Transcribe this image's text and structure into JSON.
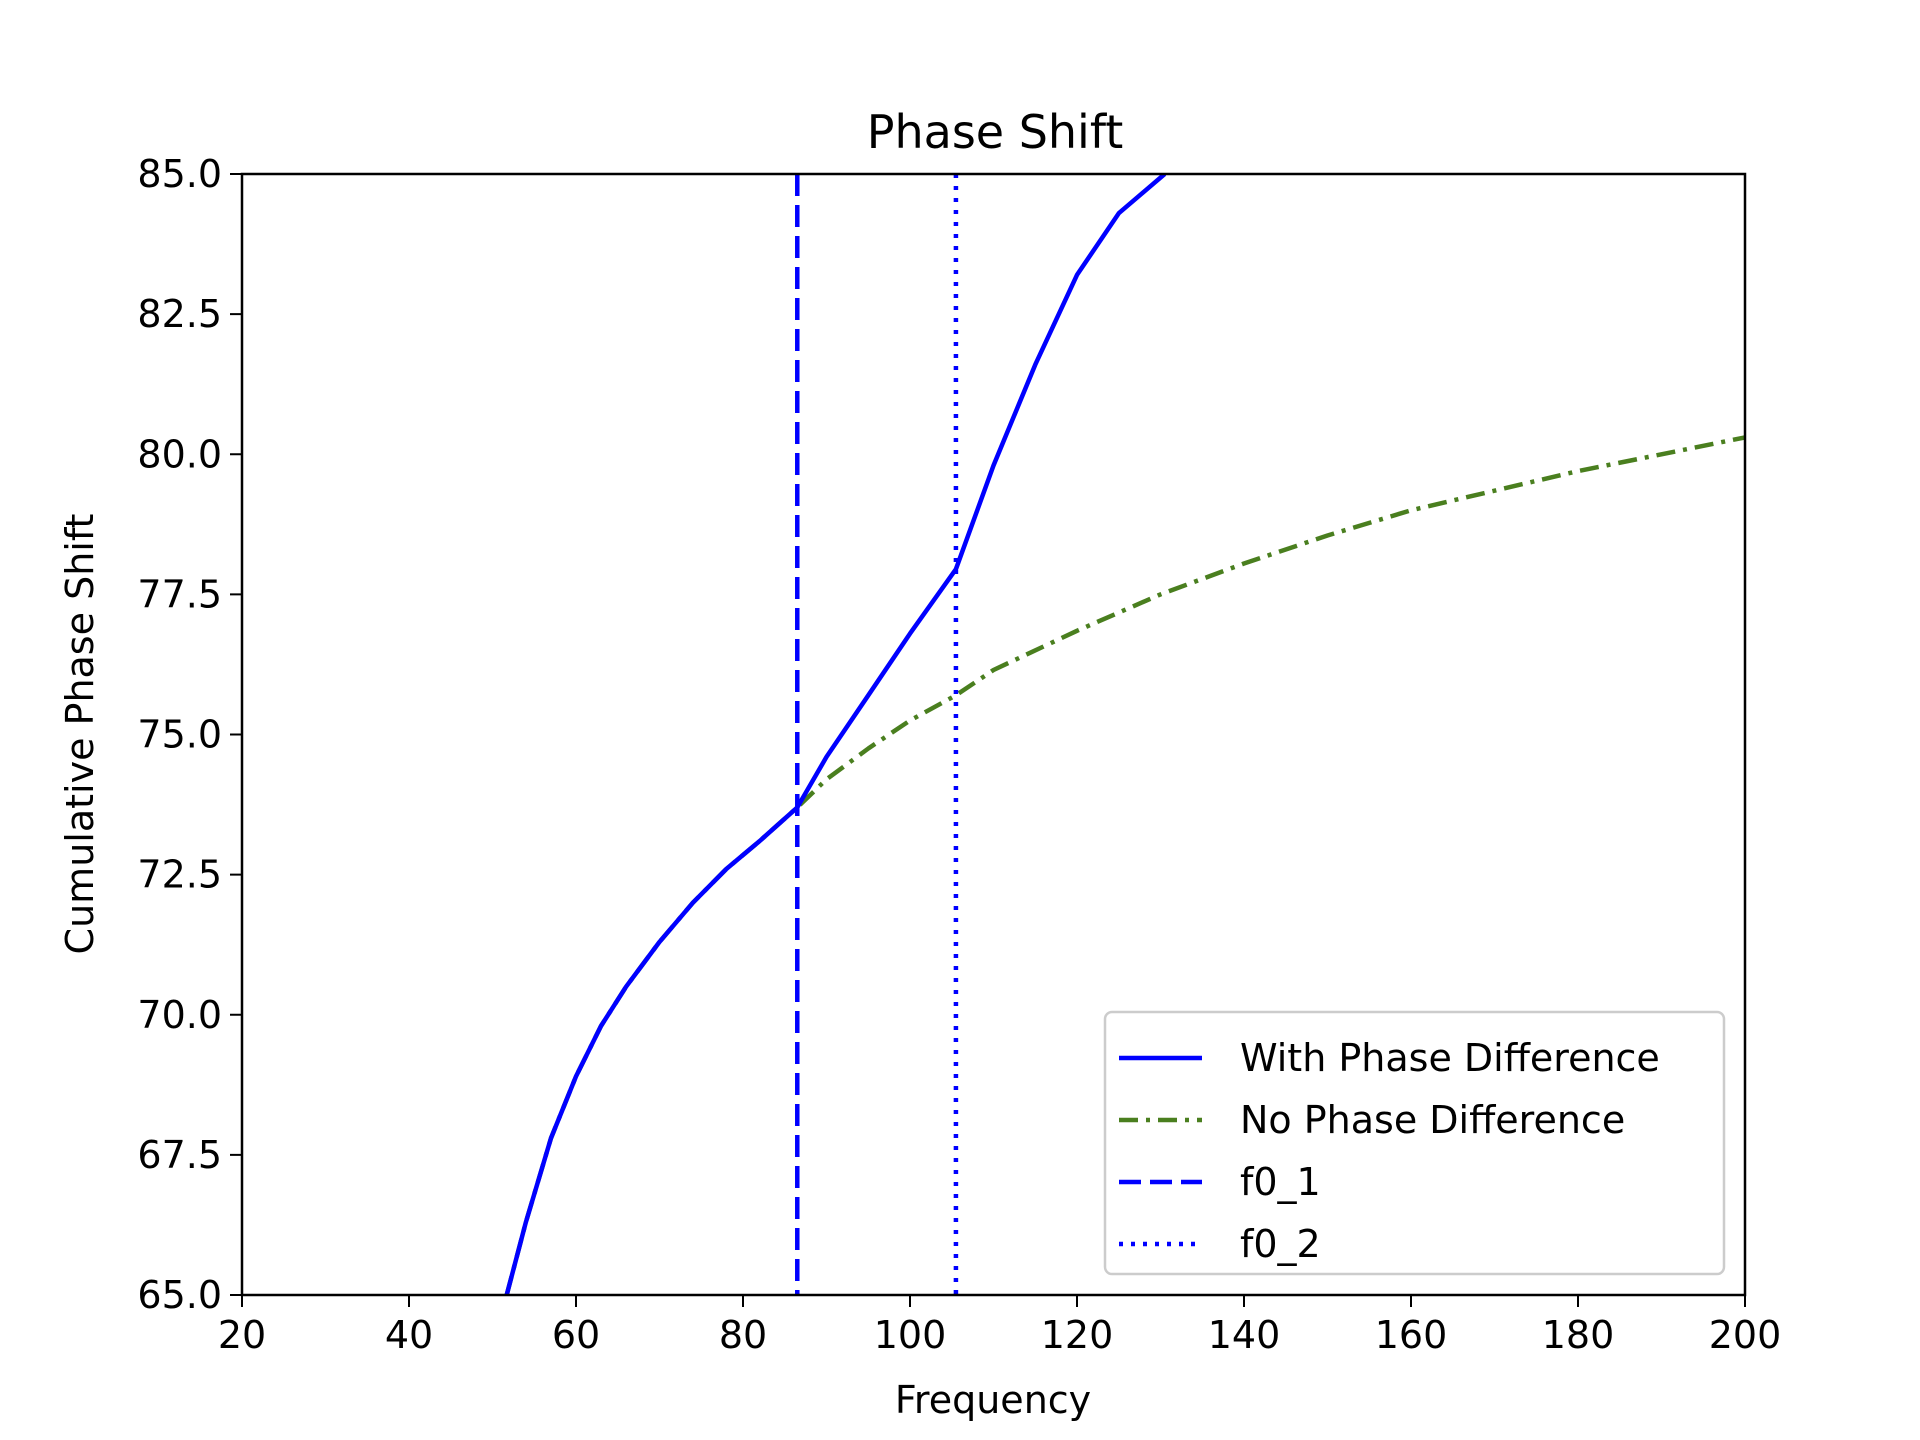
{
  "chart_data": {
    "type": "line",
    "title": "Phase Shift",
    "xlabel": "Frequency",
    "ylabel": "Cumulative Phase Shift",
    "xlim": [
      20,
      200
    ],
    "ylim": [
      65.0,
      85.0
    ],
    "xticks": [
      20,
      40,
      60,
      80,
      100,
      120,
      140,
      160,
      180,
      200
    ],
    "yticks": [
      65.0,
      67.5,
      70.0,
      72.5,
      75.0,
      77.5,
      80.0,
      82.5,
      85.0
    ],
    "xtick_labels": [
      "20",
      "40",
      "60",
      "80",
      "100",
      "120",
      "140",
      "160",
      "180",
      "200"
    ],
    "ytick_labels": [
      "65.0",
      "67.5",
      "70.0",
      "72.5",
      "75.0",
      "77.5",
      "80.0",
      "82.5",
      "85.0"
    ],
    "grid": false,
    "legend_position": "lower-right",
    "series": [
      {
        "name": "With Phase Difference",
        "style": "solid",
        "color": "#0000ff",
        "x": [
          51.7,
          54,
          57,
          60,
          63,
          66,
          70,
          74,
          78,
          82,
          86.5,
          90,
          95,
          100,
          105.5,
          110,
          115,
          120,
          125,
          130.5
        ],
        "y": [
          65.0,
          66.3,
          67.8,
          68.9,
          69.8,
          70.5,
          71.3,
          72.0,
          72.6,
          73.1,
          73.7,
          74.6,
          75.7,
          76.8,
          77.95,
          79.8,
          81.6,
          83.2,
          84.3,
          85.0
        ]
      },
      {
        "name": "No Phase Difference",
        "style": "dashdot",
        "color": "#4a7f1f",
        "x": [
          51.7,
          54,
          57,
          60,
          63,
          66,
          70,
          74,
          78,
          82,
          86.5,
          90,
          95,
          100,
          105.5,
          110,
          120,
          130,
          140,
          150,
          160,
          170,
          180,
          190,
          200
        ],
        "y": [
          65.0,
          66.3,
          67.8,
          68.9,
          69.8,
          70.5,
          71.3,
          72.0,
          72.6,
          73.1,
          73.7,
          74.2,
          74.75,
          75.25,
          75.7,
          76.15,
          76.85,
          77.5,
          78.05,
          78.55,
          79.0,
          79.35,
          79.7,
          80.0,
          80.3
        ]
      }
    ],
    "vlines": [
      {
        "name": "f0_1",
        "x": 86.5,
        "style": "dashed",
        "color": "#0000ff"
      },
      {
        "name": "f0_2",
        "x": 105.5,
        "style": "dotted",
        "color": "#0000ff"
      }
    ]
  }
}
